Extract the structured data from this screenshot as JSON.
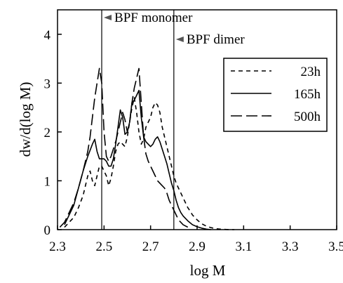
{
  "chart_data": {
    "type": "line",
    "xlabel": "log M",
    "ylabel": "dw/d(log M)",
    "xlim": [
      2.3,
      3.5
    ],
    "ylim": [
      0,
      4.5
    ],
    "x_ticks": [
      "2.3",
      "2.5",
      "2.7",
      "2.9",
      "3.1",
      "3.3",
      "3.5"
    ],
    "y_ticks": [
      "0",
      "1",
      "2",
      "3",
      "4"
    ],
    "grid": false,
    "legend_position": "top-right",
    "series": [
      {
        "name": "23h",
        "style": "dashed",
        "color": "#000000",
        "x": [
          2.33,
          2.35,
          2.37,
          2.39,
          2.41,
          2.42,
          2.43,
          2.44,
          2.45,
          2.46,
          2.47,
          2.48,
          2.49,
          2.5,
          2.51,
          2.52,
          2.53,
          2.54,
          2.55,
          2.56,
          2.57,
          2.58,
          2.59,
          2.6,
          2.61,
          2.62,
          2.63,
          2.64,
          2.65,
          2.66,
          2.67,
          2.68,
          2.69,
          2.7,
          2.71,
          2.72,
          2.73,
          2.74,
          2.75,
          2.76,
          2.77,
          2.78,
          2.79,
          2.8,
          2.81,
          2.82,
          2.83,
          2.84,
          2.85,
          2.86,
          2.87,
          2.88,
          2.9,
          2.92,
          2.94,
          2.96,
          2.98,
          3.0,
          3.02,
          3.04,
          3.06
        ],
        "y": [
          0.05,
          0.15,
          0.25,
          0.45,
          0.7,
          0.9,
          1.1,
          1.2,
          1.0,
          0.9,
          1.1,
          1.3,
          1.3,
          1.2,
          1.1,
          0.9,
          1.05,
          1.3,
          1.6,
          1.75,
          1.8,
          1.75,
          1.7,
          1.9,
          2.2,
          2.5,
          2.7,
          2.4,
          2.0,
          1.75,
          1.85,
          2.1,
          2.2,
          2.3,
          2.5,
          2.6,
          2.55,
          2.4,
          2.1,
          1.9,
          1.7,
          1.5,
          1.3,
          1.1,
          0.95,
          0.85,
          0.75,
          0.65,
          0.55,
          0.45,
          0.38,
          0.3,
          0.2,
          0.12,
          0.07,
          0.04,
          0.02,
          0.01,
          0.005,
          0.0,
          0.0
        ]
      },
      {
        "name": "165h",
        "style": "solid",
        "color": "#000000",
        "x": [
          2.33,
          2.35,
          2.37,
          2.39,
          2.41,
          2.43,
          2.45,
          2.46,
          2.47,
          2.48,
          2.49,
          2.5,
          2.51,
          2.52,
          2.53,
          2.54,
          2.55,
          2.56,
          2.57,
          2.58,
          2.59,
          2.6,
          2.61,
          2.62,
          2.63,
          2.64,
          2.65,
          2.66,
          2.67,
          2.68,
          2.69,
          2.7,
          2.71,
          2.72,
          2.73,
          2.74,
          2.75,
          2.76,
          2.77,
          2.78,
          2.79,
          2.8,
          2.81,
          2.82,
          2.83,
          2.84,
          2.86,
          2.88,
          2.9,
          2.92,
          2.94,
          2.96
        ],
        "y": [
          0.1,
          0.3,
          0.5,
          0.85,
          1.2,
          1.5,
          1.75,
          1.85,
          1.6,
          1.45,
          1.45,
          1.45,
          1.4,
          1.3,
          1.3,
          1.45,
          1.75,
          2.1,
          2.45,
          2.3,
          1.95,
          2.0,
          2.2,
          2.6,
          2.65,
          2.75,
          2.85,
          2.3,
          1.9,
          1.8,
          1.75,
          1.7,
          1.75,
          1.85,
          1.9,
          1.8,
          1.65,
          1.5,
          1.35,
          1.15,
          0.95,
          0.8,
          0.6,
          0.45,
          0.35,
          0.28,
          0.18,
          0.1,
          0.06,
          0.03,
          0.01,
          0.0
        ]
      },
      {
        "name": "500h",
        "style": "long-dash",
        "color": "#000000",
        "x": [
          2.31,
          2.33,
          2.35,
          2.37,
          2.39,
          2.41,
          2.43,
          2.44,
          2.45,
          2.46,
          2.47,
          2.48,
          2.49,
          2.5,
          2.51,
          2.52,
          2.53,
          2.54,
          2.55,
          2.56,
          2.57,
          2.58,
          2.59,
          2.6,
          2.61,
          2.62,
          2.63,
          2.64,
          2.65,
          2.66,
          2.67,
          2.68,
          2.69,
          2.7,
          2.71,
          2.72,
          2.73,
          2.74,
          2.75,
          2.76,
          2.77,
          2.78,
          2.79,
          2.8,
          2.81,
          2.82,
          2.83,
          2.84,
          2.86
        ],
        "y": [
          0.05,
          0.15,
          0.35,
          0.55,
          0.85,
          1.2,
          1.6,
          1.9,
          2.3,
          2.7,
          3.0,
          3.3,
          3.0,
          2.0,
          1.5,
          1.4,
          1.5,
          1.65,
          1.8,
          2.0,
          2.2,
          2.4,
          2.25,
          2.0,
          2.2,
          2.6,
          2.9,
          3.1,
          3.3,
          2.6,
          1.9,
          1.55,
          1.4,
          1.3,
          1.2,
          1.1,
          1.0,
          0.95,
          0.9,
          0.85,
          0.75,
          0.6,
          0.5,
          0.4,
          0.3,
          0.2,
          0.15,
          0.1,
          0.05
        ]
      }
    ],
    "reference_lines": [
      {
        "label": "BPF monomer",
        "x": 2.49
      },
      {
        "label": "BPF dimer",
        "x": 2.8
      }
    ]
  }
}
